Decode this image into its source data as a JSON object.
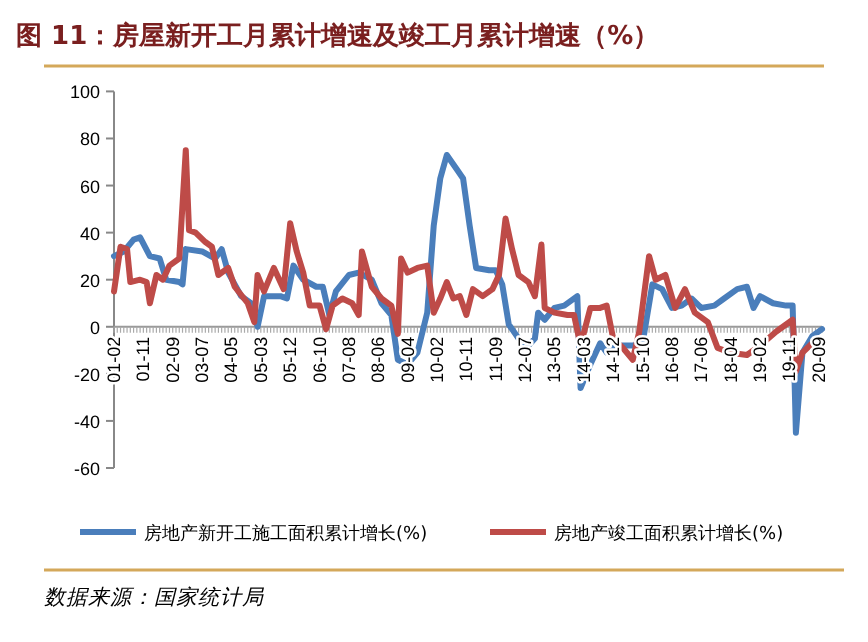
{
  "chart_data": {
    "type": "line",
    "title": "图 11：房屋新开工月累计增速及竣工月累计增速（%）",
    "annotations": [
      "数据来源：国家统计局"
    ],
    "xlim": [
      "2001-02",
      "2020-10"
    ],
    "xticks": [
      {
        "value": "2001-02",
        "label": "01-02"
      },
      {
        "value": "2001-11",
        "label": "01-11"
      },
      {
        "value": "2002-09",
        "label": "02-09"
      },
      {
        "value": "2003-07",
        "label": "03-07"
      },
      {
        "value": "2004-05",
        "label": "04-05"
      },
      {
        "value": "2005-03",
        "label": "05-03"
      },
      {
        "value": "2005-12",
        "label": "05-12"
      },
      {
        "value": "2006-10",
        "label": "06-10"
      },
      {
        "value": "2007-08",
        "label": "07-08"
      },
      {
        "value": "2008-06",
        "label": "08-06"
      },
      {
        "value": "2009-04",
        "label": "09-04"
      },
      {
        "value": "2010-02",
        "label": "10-02"
      },
      {
        "value": "2010-11",
        "label": "10-11"
      },
      {
        "value": "2011-09",
        "label": "11-09"
      },
      {
        "value": "2012-07",
        "label": "12-07"
      },
      {
        "value": "2013-05",
        "label": "13-05"
      },
      {
        "value": "2014-03",
        "label": "14-03"
      },
      {
        "value": "2014-12",
        "label": "14-12"
      },
      {
        "value": "2015-10",
        "label": "15-10"
      },
      {
        "value": "2016-08",
        "label": "16-08"
      },
      {
        "value": "2017-06",
        "label": "17-06"
      },
      {
        "value": "2018-04",
        "label": "18-04"
      },
      {
        "value": "2019-02",
        "label": "19-02"
      },
      {
        "value": "2019-11",
        "label": "19-11"
      },
      {
        "value": "2020-09",
        "label": "20-09"
      }
    ],
    "ylim": [
      -60,
      100
    ],
    "yticks": [
      -60,
      -40,
      -20,
      0,
      20,
      40,
      60,
      80,
      100
    ],
    "grid": false,
    "legend": "bottom",
    "series": [
      {
        "name": "房地产新开工施工面积累计增长(%)",
        "color": "#4a7ebb",
        "x": [
          "2001-02",
          "2001-05",
          "2001-08",
          "2001-10",
          "2002-02",
          "2002-05",
          "2002-07",
          "2002-11",
          "2002-12",
          "2003-02",
          "2003-07",
          "2003-11",
          "2004-02",
          "2004-04",
          "2004-08",
          "2004-11",
          "2005-02",
          "2005-04",
          "2005-09",
          "2005-11",
          "2006-02",
          "2006-05",
          "2006-09",
          "2006-11",
          "2007-02",
          "2007-04",
          "2007-08",
          "2007-11",
          "2008-04",
          "2008-07",
          "2008-10",
          "2008-12",
          "2009-04",
          "2009-07",
          "2009-10",
          "2009-12",
          "2010-03",
          "2010-05",
          "2010-08",
          "2010-10",
          "2010-12",
          "2011-03",
          "2011-07",
          "2011-09",
          "2011-11",
          "2012-02",
          "2012-05",
          "2012-08",
          "2012-10",
          "2012-11",
          "2013-02",
          "2013-05",
          "2013-08",
          "2013-12",
          "2014-02",
          "2014-05",
          "2014-08",
          "2014-10",
          "2015-02",
          "2015-07",
          "2015-10",
          "2016-02",
          "2016-05",
          "2016-08",
          "2016-11",
          "2017-03",
          "2017-06",
          "2017-10",
          "2018-02",
          "2018-06",
          "2018-09",
          "2018-11",
          "2019-02",
          "2019-06",
          "2019-10",
          "2019-12",
          "2020-02",
          "2020-04",
          "2020-07",
          "2020-10"
        ],
        "values": [
          30,
          32,
          37,
          38,
          30,
          29,
          20,
          19,
          18,
          33,
          32,
          29,
          33,
          23,
          13,
          10,
          0,
          13,
          13,
          12,
          26,
          20,
          17,
          17,
          5,
          15,
          22,
          23,
          20,
          10,
          5,
          -14,
          -16,
          -11,
          6,
          43,
          63,
          73,
          67,
          63,
          43,
          25,
          24,
          24,
          18,
          1,
          -5,
          -8,
          -5,
          6,
          3,
          8,
          9,
          13,
          -26,
          -16,
          -7,
          -11,
          -8,
          -8,
          -7,
          18,
          16,
          8,
          9,
          12,
          8,
          9,
          12,
          16,
          17,
          8,
          13,
          10,
          9,
          9,
          -45,
          -11,
          -4,
          -1
        ]
      },
      {
        "name": "房地产竣工面积累计增长(%)",
        "color": "#be4b48",
        "x": [
          "2001-02",
          "2001-04",
          "2001-06",
          "2001-07",
          "2001-10",
          "2001-12",
          "2002-02",
          "2002-04",
          "2002-06",
          "2002-08",
          "2002-11",
          "2003-02",
          "2003-03",
          "2003-05",
          "2003-08",
          "2003-10",
          "2003-12",
          "2004-04",
          "2004-06",
          "2004-10",
          "2004-12",
          "2005-02",
          "2005-04",
          "2005-07",
          "2005-10",
          "2005-12",
          "2006-03",
          "2006-05",
          "2006-07",
          "2006-10",
          "2006-12",
          "2007-03",
          "2007-06",
          "2007-09",
          "2007-11",
          "2007-12",
          "2008-04",
          "2008-07",
          "2008-10",
          "2008-12",
          "2009-02",
          "2009-04",
          "2009-07",
          "2009-10",
          "2009-12",
          "2010-03",
          "2010-05",
          "2010-07",
          "2010-09",
          "2010-11",
          "2011-02",
          "2011-05",
          "2011-08",
          "2011-10",
          "2011-12",
          "2012-03",
          "2012-05",
          "2012-08",
          "2012-10",
          "2012-12",
          "2013-02",
          "2013-05",
          "2013-09",
          "2013-11",
          "2014-02",
          "2014-05",
          "2014-08",
          "2014-10",
          "2014-12",
          "2015-04",
          "2015-07",
          "2015-09",
          "2015-12",
          "2016-03",
          "2016-06",
          "2016-09",
          "2016-12",
          "2017-04",
          "2017-08",
          "2017-11",
          "2018-04",
          "2018-09",
          "2019-02",
          "2019-07",
          "2019-12",
          "2020-02",
          "2020-04",
          "2020-07",
          "2020-10"
        ],
        "values": [
          15,
          34,
          33,
          19,
          20,
          19,
          10,
          22,
          20,
          26,
          29,
          75,
          41,
          40,
          36,
          34,
          22,
          25,
          17,
          10,
          2,
          22,
          15,
          25,
          16,
          44,
          32,
          23,
          9,
          9,
          -1,
          9,
          12,
          10,
          5,
          32,
          17,
          12,
          9,
          -3,
          29,
          23,
          25,
          26,
          6,
          12,
          19,
          12,
          13,
          5,
          16,
          13,
          16,
          22,
          46,
          33,
          22,
          19,
          13,
          35,
          8,
          6,
          5,
          5,
          -8,
          8,
          8,
          9,
          -5,
          -9,
          -14,
          -2,
          30,
          20,
          22,
          8,
          16,
          6,
          2,
          -9,
          -11,
          -12,
          -8,
          -2,
          3,
          -19,
          -11,
          -7,
          -8
        ]
      }
    ]
  }
}
